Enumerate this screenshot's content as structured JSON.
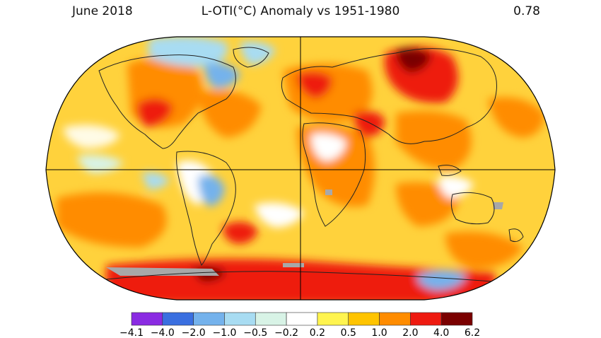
{
  "header": {
    "date": "June 2018",
    "title": "L-OTI(°C) Anomaly vs 1951-1980",
    "global_mean": "0.78"
  },
  "colorbar": {
    "tick_labels": [
      "−4.1",
      "−4.0",
      "−2.0",
      "−1.0",
      "−0.5",
      "−0.2",
      "0.2",
      "0.5",
      "1.0",
      "2.0",
      "4.0",
      "6.2"
    ],
    "colors": [
      "#8a2be2",
      "#3a6fe0",
      "#74b2ec",
      "#a8dcf2",
      "#d8f3e6",
      "#ffffff",
      "#fff44f",
      "#ffc400",
      "#ff8c00",
      "#ee1a10",
      "#7a0000"
    ]
  },
  "map": {
    "projection": "Robinson",
    "ocean_base_color": "#ffd23c",
    "missing_data_color": "#a8a8a8"
  }
}
